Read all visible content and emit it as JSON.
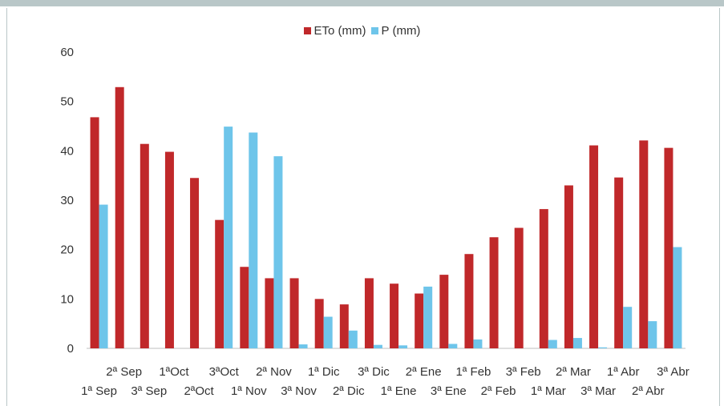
{
  "chart_data": {
    "type": "bar",
    "title": "",
    "xlabel": "",
    "ylabel": "",
    "ylim": [
      0,
      60
    ],
    "yticks": [
      0,
      10,
      20,
      30,
      40,
      50,
      60
    ],
    "grid": false,
    "legend_position": "top-center",
    "categories": [
      "1ª Sep",
      "2ª Sep",
      "3ª Sep",
      "1ªOct",
      "2ªOct",
      "3ªOct",
      "1ª Nov",
      "2ª Nov",
      "3ª Nov",
      "1ª Dic",
      "2ª Dic",
      "3ª Dic",
      "1ª Ene",
      "2ª Ene",
      "3ª Ene",
      "1ª Feb",
      "2ª Feb",
      "3ª Feb",
      "1ª Mar",
      "2ª Mar",
      "3ª Mar",
      "1ª Abr",
      "2ª Abr",
      "3ª Abr"
    ],
    "series": [
      {
        "name": "ETo (mm)",
        "color": "#c0282a",
        "values": [
          46.8,
          52.9,
          41.4,
          39.8,
          34.5,
          26.0,
          16.5,
          14.2,
          14.2,
          10.0,
          8.9,
          14.2,
          13.1,
          11.1,
          14.9,
          19.1,
          22.5,
          24.4,
          28.2,
          33.0,
          41.1,
          34.6,
          42.1,
          40.6
        ]
      },
      {
        "name": "P (mm)",
        "color": "#6ec5ea",
        "values": [
          29.1,
          0,
          0,
          0,
          0,
          44.9,
          43.7,
          38.9,
          0.8,
          6.4,
          3.6,
          0.7,
          0.6,
          12.5,
          0.9,
          1.8,
          0,
          0,
          1.7,
          2.1,
          0.2,
          8.4,
          5.5,
          20.5
        ]
      }
    ]
  }
}
